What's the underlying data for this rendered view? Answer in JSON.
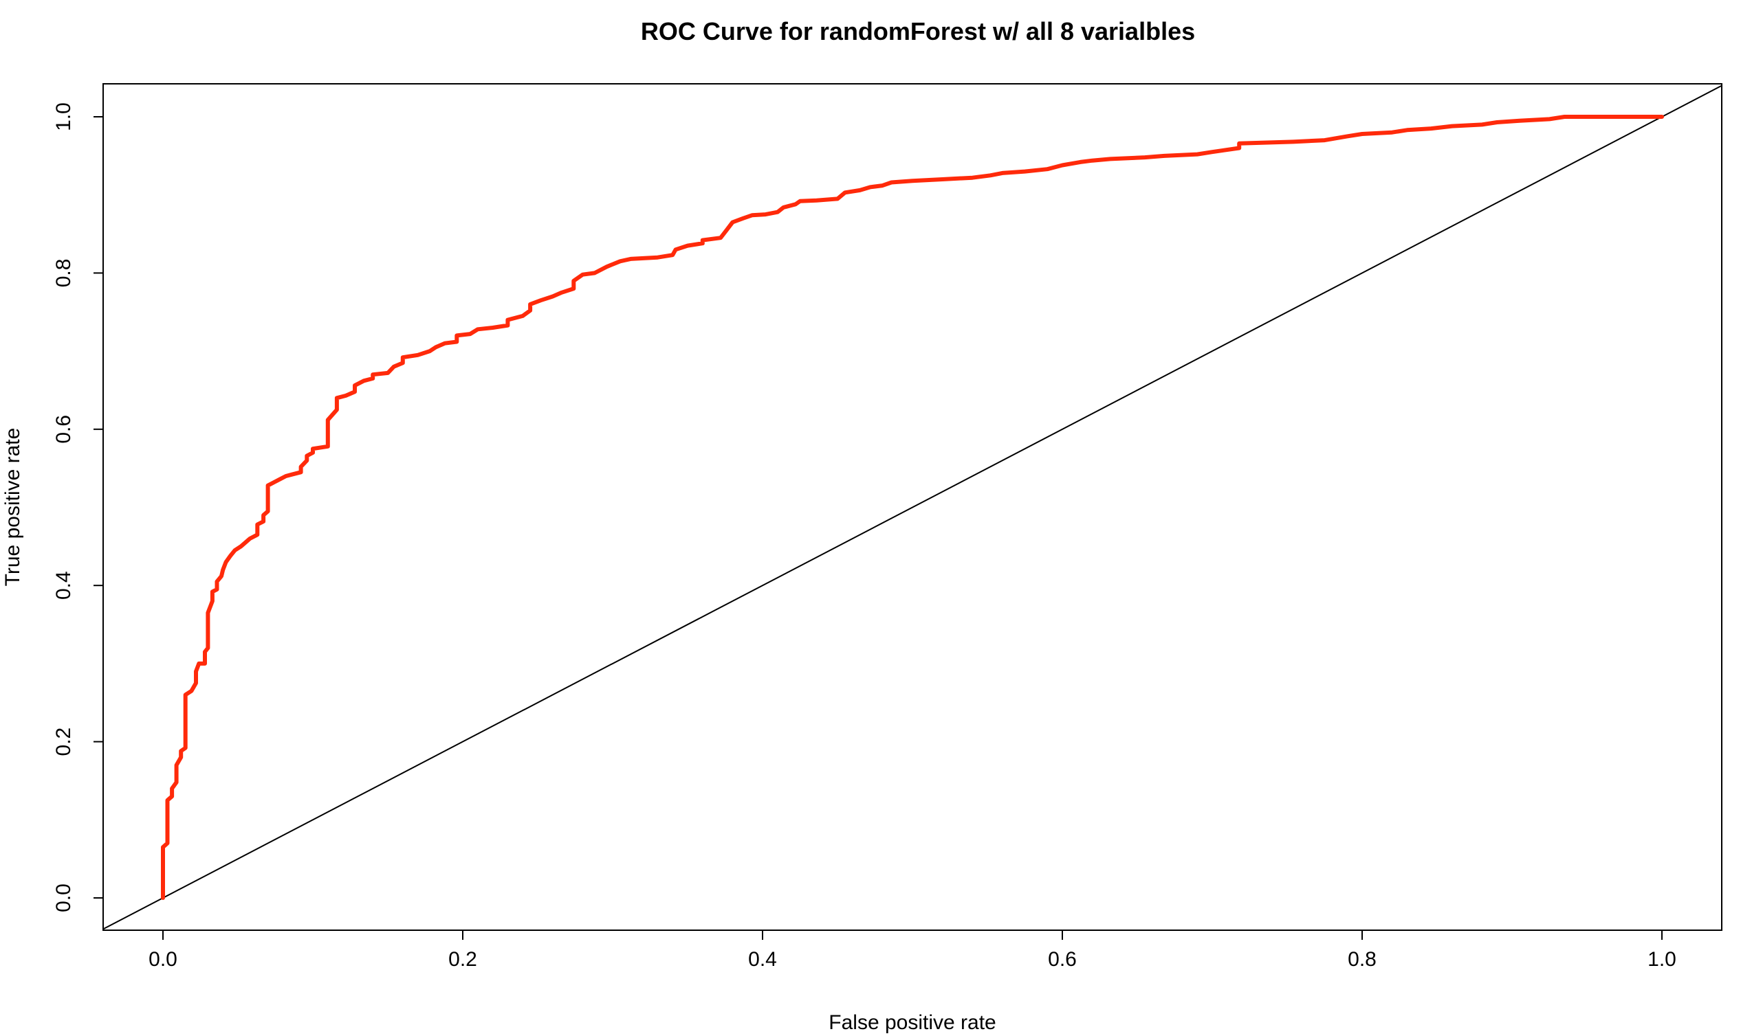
{
  "chart_data": {
    "type": "line",
    "title": "ROC Curve for randomForest w/ all 8 varialbles",
    "xlabel": "False positive rate",
    "ylabel": "True positive rate",
    "xlim": [
      0,
      1
    ],
    "ylim": [
      0,
      1
    ],
    "x_ticks": [
      "0.0",
      "0.2",
      "0.4",
      "0.6",
      "0.8",
      "1.0"
    ],
    "y_ticks": [
      "0.0",
      "0.2",
      "0.4",
      "0.6",
      "0.8",
      "1.0"
    ],
    "grid": false,
    "legend": "none",
    "series": [
      {
        "color": "#ff2a0a",
        "points": [
          [
            0.0,
            0.0
          ],
          [
            0.0,
            0.065
          ],
          [
            0.003,
            0.07
          ],
          [
            0.003,
            0.125
          ],
          [
            0.006,
            0.13
          ],
          [
            0.006,
            0.14
          ],
          [
            0.009,
            0.148
          ],
          [
            0.009,
            0.17
          ],
          [
            0.012,
            0.18
          ],
          [
            0.012,
            0.188
          ],
          [
            0.015,
            0.192
          ],
          [
            0.015,
            0.26
          ],
          [
            0.019,
            0.265
          ],
          [
            0.022,
            0.275
          ],
          [
            0.022,
            0.29
          ],
          [
            0.024,
            0.3
          ],
          [
            0.028,
            0.3
          ],
          [
            0.028,
            0.315
          ],
          [
            0.03,
            0.32
          ],
          [
            0.03,
            0.365
          ],
          [
            0.033,
            0.38
          ],
          [
            0.033,
            0.392
          ],
          [
            0.036,
            0.395
          ],
          [
            0.036,
            0.405
          ],
          [
            0.039,
            0.412
          ],
          [
            0.04,
            0.42
          ],
          [
            0.042,
            0.43
          ],
          [
            0.045,
            0.438
          ],
          [
            0.048,
            0.445
          ],
          [
            0.052,
            0.45
          ],
          [
            0.055,
            0.455
          ],
          [
            0.058,
            0.46
          ],
          [
            0.063,
            0.465
          ],
          [
            0.063,
            0.478
          ],
          [
            0.067,
            0.482
          ],
          [
            0.067,
            0.49
          ],
          [
            0.07,
            0.495
          ],
          [
            0.07,
            0.528
          ],
          [
            0.074,
            0.532
          ],
          [
            0.078,
            0.536
          ],
          [
            0.082,
            0.54
          ],
          [
            0.086,
            0.542
          ],
          [
            0.092,
            0.545
          ],
          [
            0.092,
            0.552
          ],
          [
            0.096,
            0.56
          ],
          [
            0.096,
            0.566
          ],
          [
            0.1,
            0.57
          ],
          [
            0.1,
            0.575
          ],
          [
            0.11,
            0.578
          ],
          [
            0.11,
            0.612
          ],
          [
            0.116,
            0.625
          ],
          [
            0.116,
            0.64
          ],
          [
            0.122,
            0.643
          ],
          [
            0.128,
            0.648
          ],
          [
            0.128,
            0.656
          ],
          [
            0.134,
            0.662
          ],
          [
            0.14,
            0.665
          ],
          [
            0.14,
            0.67
          ],
          [
            0.15,
            0.672
          ],
          [
            0.154,
            0.68
          ],
          [
            0.16,
            0.685
          ],
          [
            0.16,
            0.692
          ],
          [
            0.17,
            0.695
          ],
          [
            0.178,
            0.7
          ],
          [
            0.182,
            0.705
          ],
          [
            0.188,
            0.71
          ],
          [
            0.196,
            0.712
          ],
          [
            0.196,
            0.72
          ],
          [
            0.205,
            0.722
          ],
          [
            0.21,
            0.728
          ],
          [
            0.22,
            0.73
          ],
          [
            0.23,
            0.733
          ],
          [
            0.23,
            0.74
          ],
          [
            0.24,
            0.745
          ],
          [
            0.245,
            0.752
          ],
          [
            0.245,
            0.76
          ],
          [
            0.252,
            0.765
          ],
          [
            0.26,
            0.77
          ],
          [
            0.266,
            0.775
          ],
          [
            0.274,
            0.78
          ],
          [
            0.274,
            0.79
          ],
          [
            0.28,
            0.798
          ],
          [
            0.288,
            0.8
          ],
          [
            0.296,
            0.808
          ],
          [
            0.305,
            0.815
          ],
          [
            0.312,
            0.818
          ],
          [
            0.33,
            0.82
          ],
          [
            0.34,
            0.823
          ],
          [
            0.342,
            0.83
          ],
          [
            0.35,
            0.835
          ],
          [
            0.36,
            0.838
          ],
          [
            0.36,
            0.842
          ],
          [
            0.372,
            0.845
          ],
          [
            0.376,
            0.855
          ],
          [
            0.38,
            0.865
          ],
          [
            0.387,
            0.87
          ],
          [
            0.393,
            0.874
          ],
          [
            0.402,
            0.875
          ],
          [
            0.41,
            0.878
          ],
          [
            0.414,
            0.884
          ],
          [
            0.422,
            0.888
          ],
          [
            0.425,
            0.892
          ],
          [
            0.436,
            0.893
          ],
          [
            0.45,
            0.895
          ],
          [
            0.455,
            0.903
          ],
          [
            0.465,
            0.906
          ],
          [
            0.472,
            0.91
          ],
          [
            0.48,
            0.912
          ],
          [
            0.486,
            0.916
          ],
          [
            0.5,
            0.918
          ],
          [
            0.52,
            0.92
          ],
          [
            0.54,
            0.922
          ],
          [
            0.552,
            0.925
          ],
          [
            0.56,
            0.928
          ],
          [
            0.575,
            0.93
          ],
          [
            0.59,
            0.933
          ],
          [
            0.6,
            0.938
          ],
          [
            0.612,
            0.942
          ],
          [
            0.62,
            0.944
          ],
          [
            0.632,
            0.946
          ],
          [
            0.655,
            0.948
          ],
          [
            0.668,
            0.95
          ],
          [
            0.69,
            0.952
          ],
          [
            0.7,
            0.955
          ],
          [
            0.718,
            0.96
          ],
          [
            0.718,
            0.966
          ],
          [
            0.754,
            0.968
          ],
          [
            0.775,
            0.97
          ],
          [
            0.79,
            0.975
          ],
          [
            0.8,
            0.978
          ],
          [
            0.82,
            0.98
          ],
          [
            0.83,
            0.983
          ],
          [
            0.846,
            0.985
          ],
          [
            0.86,
            0.988
          ],
          [
            0.88,
            0.99
          ],
          [
            0.89,
            0.993
          ],
          [
            0.905,
            0.995
          ],
          [
            0.925,
            0.997
          ],
          [
            0.935,
            1.0
          ],
          [
            1.0,
            1.0
          ]
        ]
      },
      {
        "color": "#000000",
        "points": [
          [
            -0.04,
            -0.04
          ],
          [
            1.04,
            1.04
          ]
        ]
      }
    ]
  }
}
